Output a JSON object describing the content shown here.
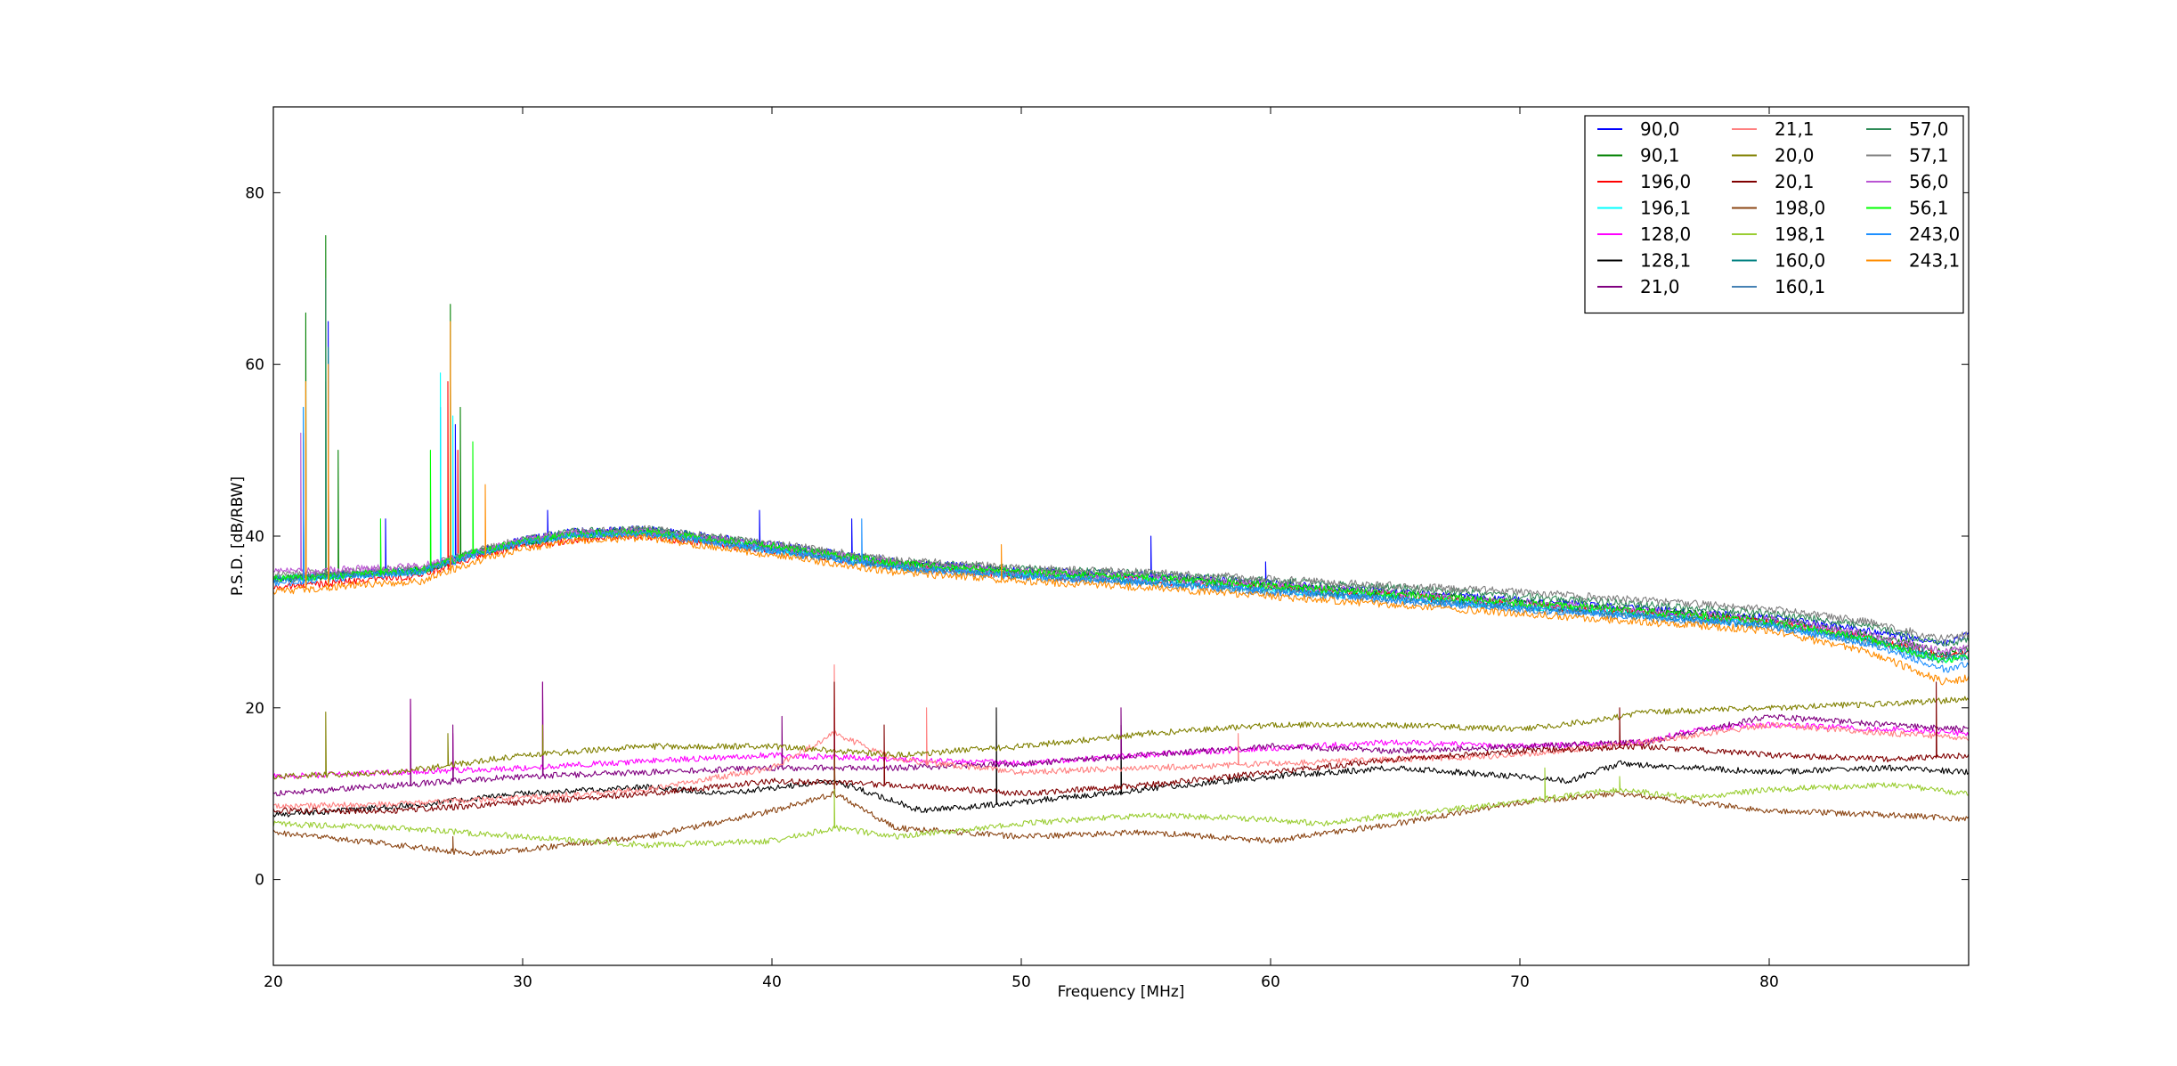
{
  "chart_data": {
    "type": "line",
    "title": "",
    "xlabel": "Frequency [MHz]",
    "ylabel": "P.S.D. [dB/RBW]",
    "xlim": [
      20,
      88
    ],
    "ylim": [
      -10,
      90
    ],
    "xticks": [
      20,
      30,
      40,
      50,
      60,
      70,
      80
    ],
    "yticks": [
      0,
      20,
      40,
      60,
      80
    ],
    "grid": false,
    "legend_position": "top-right",
    "legend_columns": 3,
    "series": [
      {
        "name": "90,0",
        "color": "#0000ff",
        "group": "high",
        "x": [
          20,
          22,
          26,
          28,
          30,
          32,
          35,
          40,
          45,
          50,
          55,
          60,
          65,
          70,
          75,
          80,
          84,
          87,
          88
        ],
        "y": [
          35,
          35.5,
          36,
          38,
          39.5,
          40.5,
          40.8,
          39,
          37,
          36,
          35.5,
          34.5,
          33.5,
          32.5,
          31.5,
          30.5,
          29,
          27.5,
          28.5
        ],
        "spikes": [
          [
            21.2,
            51
          ],
          [
            22.2,
            65
          ],
          [
            24.5,
            42
          ],
          [
            26.7,
            55
          ],
          [
            27.3,
            53
          ],
          [
            31,
            43
          ],
          [
            39.5,
            43
          ],
          [
            43.2,
            42
          ],
          [
            55.2,
            40
          ],
          [
            59.8,
            37
          ],
          [
            88,
            33
          ]
        ]
      },
      {
        "name": "90,1",
        "color": "#008000",
        "group": "high",
        "x": [
          20,
          22,
          26,
          28,
          30,
          32,
          35,
          40,
          45,
          50,
          55,
          60,
          65,
          70,
          75,
          80,
          84,
          87,
          88
        ],
        "y": [
          35,
          35.3,
          36,
          38,
          39.3,
          40.2,
          40.5,
          38.8,
          36.8,
          35.8,
          35.2,
          34.3,
          33.3,
          32.3,
          31.3,
          30.3,
          28.5,
          26.5,
          27
        ],
        "spikes": [
          [
            21.3,
            66
          ],
          [
            22.1,
            75
          ],
          [
            22.6,
            50
          ],
          [
            27.1,
            67
          ],
          [
            27.5,
            55
          ]
        ]
      },
      {
        "name": "196,0",
        "color": "#ff0000",
        "group": "high",
        "x": [
          20,
          22,
          26,
          28,
          30,
          32,
          35,
          40,
          45,
          50,
          55,
          60,
          65,
          70,
          75,
          80,
          84,
          87,
          88
        ],
        "y": [
          34,
          34.5,
          35.5,
          37.5,
          38.8,
          39.6,
          40,
          38.3,
          36.5,
          35.5,
          34.8,
          34,
          33,
          32,
          31,
          30,
          28,
          26,
          26.5
        ],
        "spikes": [
          [
            21.2,
            45
          ],
          [
            22.2,
            55
          ],
          [
            27,
            58
          ],
          [
            27.4,
            50
          ]
        ]
      },
      {
        "name": "196,1",
        "color": "#00ffff",
        "group": "high",
        "x": [
          20,
          22,
          26,
          28,
          30,
          32,
          35,
          40,
          45,
          50,
          55,
          60,
          65,
          70,
          75,
          80,
          84,
          87,
          88
        ],
        "y": [
          35,
          35.3,
          36,
          38,
          39.3,
          40.2,
          40.5,
          38.5,
          36.5,
          35.5,
          34.8,
          33.8,
          32.8,
          31.8,
          30.8,
          29.8,
          27.8,
          25.5,
          26
        ],
        "spikes": [
          [
            21.2,
            55
          ],
          [
            22.1,
            60
          ],
          [
            26.7,
            59
          ],
          [
            27.2,
            54
          ]
        ]
      },
      {
        "name": "128,0",
        "color": "#ff00ff",
        "group": "low",
        "x": [
          20,
          25,
          30,
          35,
          40,
          45,
          50,
          55,
          60,
          65,
          70,
          75,
          77,
          80,
          85,
          88
        ],
        "y": [
          12,
          12.5,
          13,
          13.8,
          14.5,
          14,
          13.5,
          14.5,
          15.3,
          16,
          15.5,
          16,
          17.5,
          18,
          17.5,
          17
        ],
        "spikes": [
          [
            25.5,
            21
          ],
          [
            27.2,
            17
          ],
          [
            30.8,
            23
          ],
          [
            42.5,
            20
          ]
        ]
      },
      {
        "name": "128,1",
        "color": "#000000",
        "group": "low",
        "x": [
          20,
          25,
          30,
          35,
          38,
          42.5,
          46,
          50,
          55,
          60,
          65,
          70,
          72,
          74,
          77,
          80,
          85,
          88
        ],
        "y": [
          7.5,
          8.5,
          10,
          10.8,
          10,
          11.5,
          8,
          9,
          10.5,
          12,
          13,
          12,
          11.5,
          13.5,
          13,
          12.5,
          13,
          12.5
        ],
        "spikes": [
          [
            42.5,
            15
          ],
          [
            49,
            20
          ],
          [
            54,
            18
          ]
        ]
      },
      {
        "name": "21,0",
        "color": "#800080",
        "group": "low",
        "x": [
          20,
          25,
          30,
          35,
          40,
          45,
          50,
          55,
          60,
          65,
          70,
          75,
          80,
          85,
          88
        ],
        "y": [
          10,
          11,
          12,
          12.5,
          13,
          13,
          13.5,
          14.5,
          15.5,
          15,
          15.5,
          16,
          19,
          18,
          17.5
        ],
        "spikes": [
          [
            25.5,
            21
          ],
          [
            27.2,
            18
          ],
          [
            30.8,
            23
          ],
          [
            40.4,
            19
          ],
          [
            54,
            20
          ]
        ]
      },
      {
        "name": "21,1",
        "color": "#ff8080",
        "group": "low",
        "x": [
          20,
          25,
          30,
          35,
          40,
          42.5,
          45,
          50,
          55,
          60,
          65,
          70,
          75,
          80,
          85,
          88
        ],
        "y": [
          8.5,
          8.8,
          9.5,
          10.5,
          13,
          17,
          14,
          12.5,
          13,
          13.5,
          14,
          14.5,
          16,
          18,
          17,
          16.5
        ],
        "spikes": [
          [
            42.5,
            25
          ],
          [
            46.2,
            20
          ],
          [
            58.7,
            17
          ]
        ]
      },
      {
        "name": "20,0",
        "color": "#808000",
        "group": "low",
        "x": [
          20,
          25,
          30,
          35,
          40,
          45,
          50,
          55,
          60,
          65,
          70,
          73,
          75,
          80,
          85,
          88
        ],
        "y": [
          12,
          12.5,
          14.5,
          15.5,
          15.5,
          14.5,
          15.5,
          17,
          18,
          18,
          17.5,
          18.5,
          19.5,
          20,
          20.5,
          21
        ],
        "spikes": [
          [
            22.1,
            19.5
          ],
          [
            27,
            17
          ],
          [
            30.8,
            18
          ]
        ]
      },
      {
        "name": "20,1",
        "color": "#800000",
        "group": "low",
        "x": [
          20,
          25,
          30,
          35,
          40,
          45,
          50,
          55,
          60,
          65,
          70,
          75,
          80,
          85,
          88
        ],
        "y": [
          8,
          8,
          9,
          10,
          11.5,
          11,
          10,
          11,
          12.5,
          14,
          15,
          15.5,
          14.5,
          14,
          14.5
        ],
        "spikes": [
          [
            42.5,
            23
          ],
          [
            44.5,
            18
          ],
          [
            74,
            20
          ],
          [
            86.7,
            23
          ]
        ]
      },
      {
        "name": "198,0",
        "color": "#8b4513",
        "group": "low",
        "x": [
          20,
          25,
          28,
          30,
          35,
          40,
          42.5,
          45,
          50,
          55,
          60,
          65,
          70,
          74,
          77,
          80,
          85,
          88
        ],
        "y": [
          5.5,
          4,
          3,
          3.5,
          5,
          8,
          10,
          6,
          5,
          5.5,
          4.5,
          6.5,
          9,
          10,
          9,
          8,
          7.5,
          7
        ],
        "spikes": [
          [
            27.2,
            5
          ],
          [
            42.5,
            15
          ]
        ]
      },
      {
        "name": "198,1",
        "color": "#9acd32",
        "group": "low",
        "x": [
          20,
          25,
          30,
          35,
          40,
          42.5,
          45,
          50,
          55,
          60,
          62,
          65,
          70,
          74,
          77,
          80,
          85,
          88
        ],
        "y": [
          6.5,
          6,
          5,
          4,
          4.5,
          6,
          5,
          6.5,
          7.5,
          7,
          6.5,
          7.5,
          9,
          10.5,
          9.5,
          10.5,
          11,
          10
        ],
        "spikes": [
          [
            42.5,
            10.5
          ],
          [
            71,
            13
          ],
          [
            74,
            12
          ]
        ]
      },
      {
        "name": "160,0",
        "color": "#008080",
        "group": "high",
        "x": [
          20,
          22,
          26,
          28,
          30,
          32,
          35,
          40,
          45,
          50,
          55,
          60,
          65,
          70,
          75,
          80,
          84,
          87,
          88
        ],
        "y": [
          35,
          35.3,
          36,
          38,
          39.3,
          40.2,
          40.5,
          38.5,
          36.5,
          35.5,
          34.8,
          33.8,
          32.8,
          31.8,
          30.8,
          29.8,
          28,
          26,
          26.5
        ],
        "spikes": [
          [
            21.2,
            52
          ],
          [
            22.2,
            62
          ]
        ]
      },
      {
        "name": "160,1",
        "color": "#4682b4",
        "group": "high",
        "x": [
          20,
          22,
          26,
          28,
          30,
          32,
          35,
          40,
          45,
          50,
          55,
          60,
          65,
          70,
          75,
          80,
          84,
          87,
          88
        ],
        "y": [
          35,
          35.3,
          36,
          38,
          39.3,
          40.1,
          40.3,
          38.3,
          36.3,
          35.3,
          34.5,
          33.5,
          32.5,
          31.5,
          30.5,
          29.5,
          27.5,
          25.5,
          26
        ],
        "spikes": [
          [
            21.2,
            50
          ],
          [
            22.1,
            58
          ]
        ]
      },
      {
        "name": "57,0",
        "color": "#2e8b57",
        "group": "high",
        "x": [
          20,
          22,
          26,
          28,
          30,
          32,
          35,
          40,
          45,
          50,
          55,
          60,
          65,
          70,
          75,
          80,
          84,
          87,
          88
        ],
        "y": [
          35,
          35.5,
          36,
          38,
          39.5,
          40.5,
          40.8,
          39,
          37,
          36.2,
          35.6,
          34.8,
          34,
          33,
          32,
          31,
          29.5,
          27.5,
          28
        ],
        "spikes": [
          [
            22.1,
            70
          ]
        ]
      },
      {
        "name": "57,1",
        "color": "#808080",
        "group": "high",
        "x": [
          20,
          22,
          26,
          28,
          30,
          32,
          35,
          40,
          45,
          50,
          55,
          60,
          65,
          70,
          75,
          80,
          84,
          87,
          88
        ],
        "y": [
          35.5,
          35.8,
          36.3,
          38.2,
          39.6,
          40.5,
          40.8,
          39.2,
          37.2,
          36.3,
          35.8,
          35,
          34.2,
          33.5,
          32.5,
          31.5,
          30,
          28,
          28.5
        ],
        "spikes": [
          [
            22.2,
            55
          ]
        ]
      },
      {
        "name": "56,0",
        "color": "#ba55d3",
        "group": "high",
        "x": [
          20,
          22,
          26,
          28,
          30,
          32,
          35,
          40,
          45,
          50,
          55,
          60,
          65,
          70,
          75,
          80,
          84,
          87,
          88
        ],
        "y": [
          36,
          36,
          36.5,
          38,
          39.5,
          40.3,
          40.6,
          38.8,
          36.8,
          35.8,
          35.2,
          34.3,
          33.3,
          32.3,
          31.3,
          30.3,
          28.5,
          26.5,
          27
        ],
        "spikes": [
          [
            21.1,
            52
          ],
          [
            22.2,
            55
          ]
        ]
      },
      {
        "name": "56,1",
        "color": "#00ff00",
        "group": "high",
        "x": [
          20,
          22,
          26,
          28,
          30,
          32,
          35,
          40,
          45,
          50,
          55,
          60,
          65,
          70,
          75,
          80,
          84,
          87,
          88
        ],
        "y": [
          35,
          35.3,
          36,
          38,
          39.3,
          40.2,
          40.5,
          38.8,
          36.8,
          35.8,
          35.2,
          34.2,
          33.2,
          32.2,
          31.2,
          30,
          28,
          25.5,
          26
        ],
        "spikes": [
          [
            24.3,
            42
          ],
          [
            26.3,
            50
          ],
          [
            28,
            51
          ]
        ]
      },
      {
        "name": "243,0",
        "color": "#1e90ff",
        "group": "high",
        "x": [
          20,
          22,
          26,
          28,
          30,
          32,
          35,
          40,
          45,
          50,
          55,
          60,
          65,
          70,
          75,
          80,
          84,
          87,
          88
        ],
        "y": [
          34.5,
          35,
          35.8,
          37.8,
          39.2,
          40,
          40.3,
          38.3,
          36.3,
          35.3,
          34.6,
          33.6,
          32.6,
          31.6,
          30.6,
          29.6,
          27.5,
          24.5,
          25
        ],
        "spikes": [
          [
            21.2,
            55
          ],
          [
            22.2,
            60
          ],
          [
            43.6,
            42
          ]
        ]
      },
      {
        "name": "243,1",
        "color": "#ff8c00",
        "group": "high",
        "x": [
          20,
          22,
          26,
          28,
          30,
          32,
          35,
          40,
          45,
          50,
          55,
          60,
          65,
          70,
          75,
          80,
          84,
          87,
          88
        ],
        "y": [
          33.5,
          34,
          34.8,
          37,
          38.5,
          39.5,
          39.8,
          37.8,
          35.8,
          34.8,
          34,
          33,
          32,
          31,
          30,
          29,
          26.5,
          23,
          23.5
        ],
        "spikes": [
          [
            21.3,
            58
          ],
          [
            22.2,
            60
          ],
          [
            27.1,
            65
          ],
          [
            28.5,
            46
          ],
          [
            49.2,
            39
          ]
        ]
      }
    ]
  }
}
